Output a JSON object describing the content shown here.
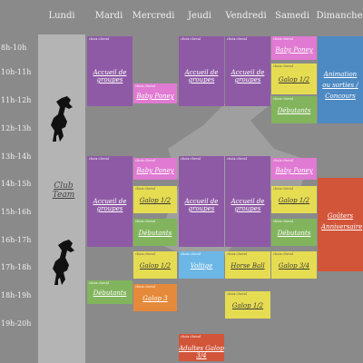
{
  "days": [
    "Lundi",
    "Mardi",
    "Mercredi",
    "Jeudi",
    "Vendredi",
    "Samedi",
    "Dimanche"
  ],
  "times": [
    "8h-10h",
    "10h-11h",
    "11h-12h",
    "12h-13h",
    "13h-14h",
    "14h-15h",
    "15h-16h",
    "16h-17h",
    "17h-18h",
    "18h-19h",
    "19h-20h"
  ],
  "lundi_label": "Club Team",
  "small_note": "choix cheval",
  "events": {
    "mardi_accueil_am": "Accueil de groupes",
    "mercredi_baby_am": "Baby Poney",
    "jeudi_accueil_am": "Accueil de groupes",
    "vendredi_accueil_am": "Accueil de groupes",
    "samedi_baby_am": "Baby Poney",
    "samedi_galop12_am": "Galop 1/2",
    "samedi_debutants_am": "Débutants",
    "dimanche_animation": "Animation ou sorties / Concours",
    "mardi_accueil_pm": "Accueil de groupes",
    "mercredi_baby_pm": "Baby Poney",
    "mercredi_galop12_pm": "Galop 1/2",
    "mercredi_debutants_pm": "Débutants",
    "mercredi_galop12_b": "Galop 1/2",
    "mercredi_galop3": "Galop 3",
    "mardi_debutants": "Débutants",
    "jeudi_accueil_pm": "Accueil de groupes",
    "jeudi_voltige": "Voltige",
    "jeudi_adultes": "Adultes Galop 3/4",
    "vendredi_accueil_pm": "Accueil de groupes",
    "vendredi_horseball": "Horse Ball",
    "vendredi_galop12": "Galop 1/2",
    "samedi_baby_pm": "Baby Poney",
    "samedi_galop12_pm": "Galop 1/2",
    "samedi_debutants_pm": "Débutants",
    "samedi_galop34": "Galop 3/4",
    "dimanche_gouters": "Goûters Anniversaire"
  },
  "colors": {
    "purple": "#8e5aa5",
    "pink": "#e07ad2",
    "yellow": "#e6dc52",
    "green": "#82b45e",
    "blue": "#4d89c3",
    "red": "#d2553a",
    "orange": "#e58a3a",
    "light_blue": "#6cb7e6"
  }
}
